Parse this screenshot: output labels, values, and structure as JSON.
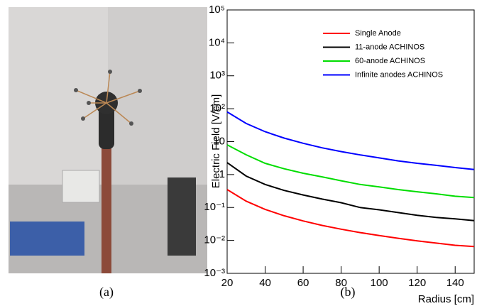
{
  "captions": [
    "(a)",
    "(b)"
  ],
  "chart_data": {
    "type": "line",
    "x_label": "Radius [cm]",
    "y_label": "Electric Field [V/cm]",
    "x": [
      20,
      30,
      40,
      50,
      60,
      70,
      80,
      90,
      100,
      110,
      120,
      130,
      140,
      150
    ],
    "series": [
      {
        "name": "Single Anode",
        "color": "#ff0000",
        "values": [
          0.35,
          0.156,
          0.0875,
          0.056,
          0.039,
          0.0286,
          0.0219,
          0.0173,
          0.014,
          0.0116,
          0.0097,
          0.0083,
          0.0071,
          0.0065
        ]
      },
      {
        "name": "11-anode ACHINOS",
        "color": "#000000",
        "values": [
          2.3,
          0.9,
          0.5,
          0.33,
          0.24,
          0.18,
          0.14,
          0.1,
          0.085,
          0.07,
          0.058,
          0.05,
          0.045,
          0.04
        ]
      },
      {
        "name": "60-anode ACHINOS",
        "color": "#00dd00",
        "values": [
          8,
          4,
          2.2,
          1.5,
          1.1,
          0.85,
          0.65,
          0.5,
          0.42,
          0.35,
          0.3,
          0.26,
          0.22,
          0.2
        ]
      },
      {
        "name": "Infinite anodes ACHINOS",
        "color": "#0000ff",
        "values": [
          80,
          35.6,
          20,
          12.8,
          8.9,
          6.5,
          5,
          3.95,
          3.2,
          2.6,
          2.2,
          1.9,
          1.63,
          1.42
        ]
      }
    ],
    "log_y": true,
    "xlim": [
      20,
      150
    ],
    "xticks": [
      20,
      40,
      60,
      80,
      100,
      120,
      140
    ],
    "ylim": [
      0.001,
      100000
    ],
    "yticks": [
      {
        "value": 0.001,
        "label": "10⁻³"
      },
      {
        "value": 0.01,
        "label": "10⁻²"
      },
      {
        "value": 0.1,
        "label": "10⁻¹"
      },
      1,
      10,
      {
        "value": 100,
        "label": "10²"
      },
      {
        "value": 1000,
        "label": "10³"
      },
      {
        "value": 10000,
        "label": "10⁴"
      },
      {
        "value": 100000,
        "label": "10⁵"
      }
    ],
    "legend": "upper right"
  }
}
